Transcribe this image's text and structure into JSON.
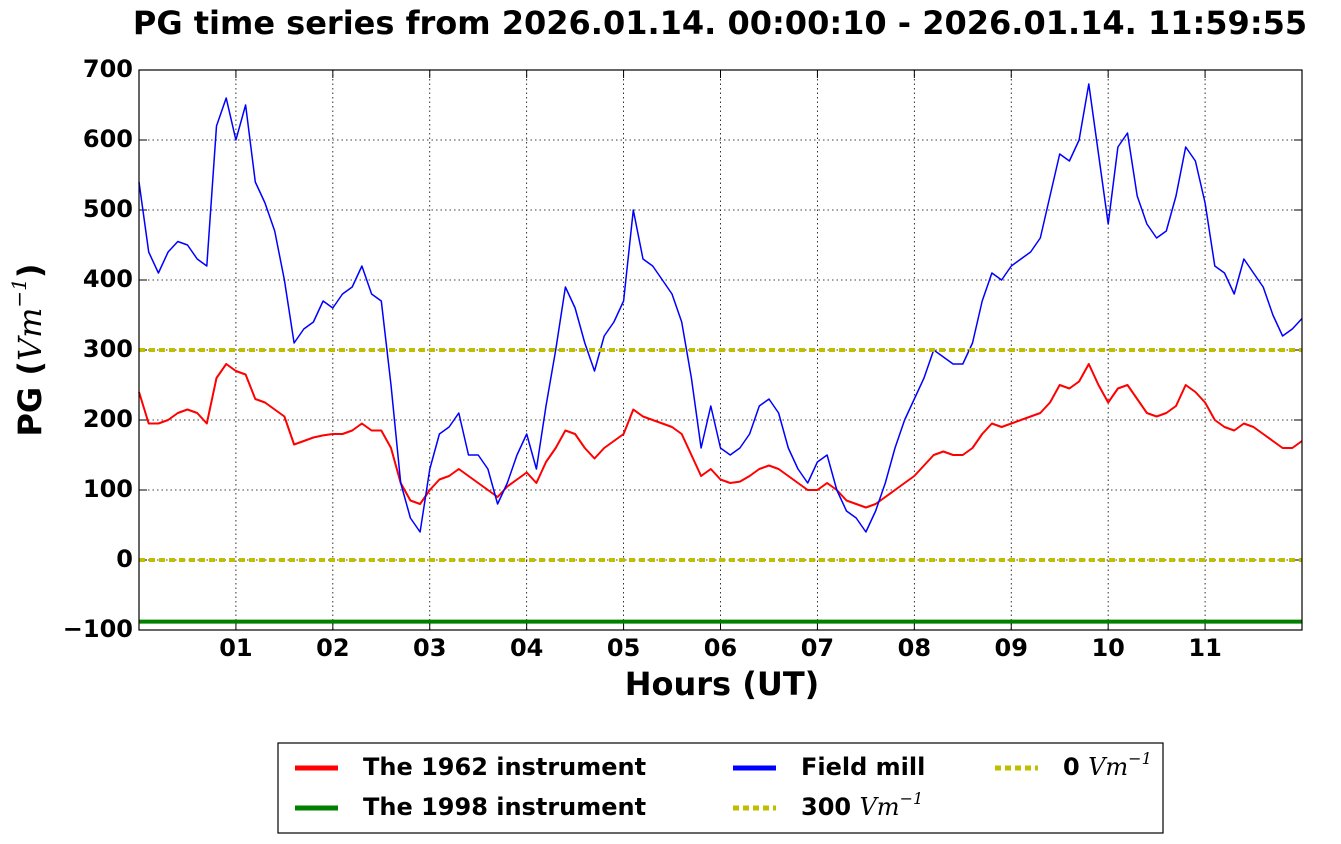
{
  "chart_data": {
    "type": "line",
    "title": "PG time series from 2026.01.14. 00:00:10 - 2026.01.14. 11:59:55",
    "x_label": "Hours (UT)",
    "y_label": {
      "prefix": "PG (",
      "suffix": ")"
    },
    "unit": {
      "base": "Vm",
      "exponent": "−1"
    },
    "xlim": [
      0,
      12
    ],
    "ylim": [
      -100,
      700
    ],
    "xticks": [
      {
        "value": 1,
        "label": "01"
      },
      {
        "value": 2,
        "label": "02"
      },
      {
        "value": 3,
        "label": "03"
      },
      {
        "value": 4,
        "label": "04"
      },
      {
        "value": 5,
        "label": "05"
      },
      {
        "value": 6,
        "label": "06"
      },
      {
        "value": 7,
        "label": "07"
      },
      {
        "value": 8,
        "label": "08"
      },
      {
        "value": 9,
        "label": "09"
      },
      {
        "value": 10,
        "label": "10"
      },
      {
        "value": 11,
        "label": "11"
      }
    ],
    "yticks": [
      {
        "value": -100,
        "label": "−100"
      },
      0,
      100,
      200,
      300,
      400,
      500,
      600,
      700
    ],
    "grid": true,
    "legend": "bottom",
    "x": [
      0,
      0.1,
      0.2,
      0.3,
      0.4,
      0.5,
      0.6,
      0.7,
      0.8,
      0.9,
      1,
      1.1,
      1.2,
      1.3,
      1.4,
      1.5,
      1.6,
      1.7,
      1.8,
      1.9,
      2,
      2.1,
      2.2,
      2.3,
      2.4,
      2.5,
      2.6,
      2.7,
      2.8,
      2.9,
      3,
      3.1,
      3.2,
      3.3,
      3.4,
      3.5,
      3.6,
      3.7,
      3.8,
      3.9,
      4,
      4.1,
      4.2,
      4.3,
      4.4,
      4.5,
      4.6,
      4.7,
      4.8,
      4.9,
      5,
      5.1,
      5.2,
      5.3,
      5.4,
      5.5,
      5.6,
      5.7,
      5.8,
      5.9,
      6,
      6.1,
      6.2,
      6.3,
      6.4,
      6.5,
      6.6,
      6.7,
      6.8,
      6.9,
      7,
      7.1,
      7.2,
      7.3,
      7.4,
      7.5,
      7.6,
      7.7,
      7.8,
      7.9,
      8,
      8.1,
      8.2,
      8.3,
      8.4,
      8.5,
      8.6,
      8.7,
      8.8,
      8.9,
      9,
      9.1,
      9.2,
      9.3,
      9.4,
      9.5,
      9.6,
      9.7,
      9.8,
      9.9,
      10,
      10.1,
      10.2,
      10.3,
      10.4,
      10.5,
      10.6,
      10.7,
      10.8,
      10.9,
      11,
      11.1,
      11.2,
      11.3,
      11.4,
      11.5,
      11.6,
      11.7,
      11.8,
      11.9,
      12
    ],
    "series": [
      {
        "name": "The 1962 instrument",
        "color": "#ff0000",
        "width": 2,
        "values": [
          240,
          195,
          195,
          200,
          210,
          215,
          210,
          195,
          260,
          280,
          270,
          265,
          230,
          225,
          215,
          205,
          165,
          170,
          175,
          178,
          180,
          180,
          185,
          195,
          185,
          185,
          160,
          110,
          85,
          80,
          100,
          115,
          120,
          130,
          120,
          110,
          100,
          90,
          105,
          115,
          125,
          110,
          140,
          160,
          185,
          180,
          160,
          145,
          160,
          170,
          180,
          215,
          205,
          200,
          195,
          190,
          180,
          150,
          120,
          130,
          115,
          110,
          112,
          120,
          130,
          135,
          130,
          120,
          110,
          100,
          100,
          110,
          100,
          85,
          80,
          75,
          80,
          90,
          100,
          110,
          120,
          135,
          150,
          155,
          150,
          150,
          160,
          180,
          195,
          190,
          195,
          200,
          205,
          210,
          225,
          250,
          245,
          255,
          280,
          250,
          225,
          245,
          250,
          230,
          210,
          205,
          210,
          220,
          250,
          240,
          225,
          200,
          190,
          185,
          195,
          190,
          180,
          170,
          160,
          160,
          170
        ]
      },
      {
        "name": "The 1998 instrument",
        "color": "#008000",
        "width": 4,
        "values": [
          -88,
          -88,
          -88,
          -88,
          -88,
          -88,
          -88,
          -88,
          -88,
          -88,
          -88,
          -88,
          -88,
          -88,
          -88,
          -88,
          -88,
          -88,
          -88,
          -88,
          -88,
          -88,
          -88,
          -88,
          -88,
          -88,
          -88,
          -88,
          -88,
          -88,
          -88,
          -88,
          -88,
          -88,
          -88,
          -88,
          -88,
          -88,
          -88,
          -88,
          -88,
          -88,
          -88,
          -88,
          -88,
          -88,
          -88,
          -88,
          -88,
          -88,
          -88,
          -88,
          -88,
          -88,
          -88,
          -88,
          -88,
          -88,
          -88,
          -88,
          -88,
          -88,
          -88,
          -88,
          -88,
          -88,
          -88,
          -88,
          -88,
          -88,
          -88,
          -88,
          -88,
          -88,
          -88,
          -88,
          -88,
          -88,
          -88,
          -88,
          -88,
          -88,
          -88,
          -88,
          -88,
          -88,
          -88,
          -88,
          -88,
          -88,
          -88,
          -88,
          -88,
          -88,
          -88,
          -88,
          -88,
          -88,
          -88,
          -88,
          -88,
          -88,
          -88,
          -88,
          -88,
          -88,
          -88,
          -88,
          -88,
          -88,
          -88,
          -88,
          -88,
          -88,
          -88,
          -88,
          -88,
          -88,
          -88,
          -88,
          -88
        ]
      },
      {
        "name": "Field mill",
        "color": "#0000ff",
        "width": 1.5,
        "values": [
          540,
          440,
          410,
          440,
          455,
          450,
          430,
          420,
          620,
          660,
          600,
          650,
          540,
          510,
          470,
          400,
          310,
          330,
          340,
          370,
          360,
          380,
          390,
          420,
          380,
          370,
          250,
          110,
          60,
          40,
          130,
          180,
          190,
          210,
          150,
          150,
          130,
          80,
          110,
          150,
          180,
          130,
          220,
          300,
          390,
          360,
          310,
          270,
          320,
          340,
          370,
          500,
          430,
          420,
          400,
          380,
          340,
          260,
          160,
          220,
          160,
          150,
          160,
          180,
          220,
          230,
          210,
          160,
          130,
          110,
          140,
          150,
          100,
          70,
          60,
          40,
          70,
          110,
          160,
          200,
          230,
          260,
          300,
          290,
          280,
          280,
          310,
          370,
          410,
          400,
          420,
          430,
          440,
          460,
          520,
          580,
          570,
          600,
          680,
          580,
          480,
          590,
          610,
          520,
          480,
          460,
          470,
          520,
          590,
          570,
          510,
          420,
          410,
          380,
          430,
          410,
          390,
          350,
          320,
          330,
          345
        ]
      }
    ],
    "hlines": [
      {
        "value": 300,
        "color": "#bfbf00"
      },
      {
        "value": 0,
        "color": "#bfbf00"
      }
    ]
  }
}
